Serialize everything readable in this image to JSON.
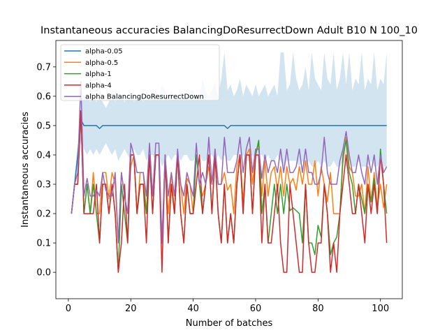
{
  "chart_data": {
    "type": "line",
    "title": "Instantaneous accuracies BalancingDoResurrectDown Adult B10 N 100_10",
    "xlabel": "Number of batches",
    "ylabel": "Instantaneous accuracies",
    "xlim": [
      -4,
      107
    ],
    "ylim": [
      -0.09,
      0.79
    ],
    "xticks": [
      0,
      20,
      40,
      60,
      80,
      100
    ],
    "yticks": [
      0.0,
      0.1,
      0.2,
      0.3,
      0.4,
      0.5,
      0.6,
      0.7
    ],
    "ytick_labels": [
      "0.0",
      "0.1",
      "0.2",
      "0.3",
      "0.4",
      "0.5",
      "0.6",
      "0.7"
    ],
    "grid": false,
    "legend_position": "top-left",
    "x": [
      1,
      2,
      3,
      4,
      5,
      6,
      7,
      8,
      9,
      10,
      11,
      12,
      13,
      14,
      15,
      16,
      17,
      18,
      19,
      20,
      21,
      22,
      23,
      24,
      25,
      26,
      27,
      28,
      29,
      30,
      31,
      32,
      33,
      34,
      35,
      36,
      37,
      38,
      39,
      40,
      41,
      42,
      43,
      44,
      45,
      46,
      47,
      48,
      49,
      50,
      51,
      52,
      53,
      54,
      55,
      56,
      57,
      58,
      59,
      60,
      61,
      62,
      63,
      64,
      65,
      66,
      67,
      68,
      69,
      70,
      71,
      72,
      73,
      74,
      75,
      76,
      77,
      78,
      79,
      80,
      81,
      82,
      83,
      84,
      85,
      86,
      87,
      88,
      89,
      90,
      91,
      92,
      93,
      94,
      95,
      96,
      97,
      98,
      99,
      100,
      101,
      102
    ],
    "series": [
      {
        "name": "alpha-0.05",
        "color": "#1f77b4",
        "values": [
          0.2,
          0.3,
          0.4,
          0.52,
          0.5,
          0.5,
          0.5,
          0.5,
          0.5,
          0.49,
          0.5,
          0.5,
          0.5,
          0.5,
          0.5,
          0.5,
          0.5,
          0.5,
          0.5,
          0.5,
          0.5,
          0.5,
          0.5,
          0.5,
          0.5,
          0.5,
          0.5,
          0.5,
          0.5,
          0.5,
          0.5,
          0.5,
          0.5,
          0.5,
          0.5,
          0.5,
          0.5,
          0.5,
          0.5,
          0.5,
          0.5,
          0.5,
          0.5,
          0.5,
          0.5,
          0.5,
          0.5,
          0.5,
          0.5,
          0.5,
          0.49,
          0.5,
          0.5,
          0.5,
          0.5,
          0.5,
          0.5,
          0.5,
          0.5,
          0.5,
          0.5,
          0.5,
          0.5,
          0.5,
          0.5,
          0.5,
          0.5,
          0.5,
          0.5,
          0.5,
          0.5,
          0.5,
          0.5,
          0.5,
          0.5,
          0.5,
          0.5,
          0.5,
          0.5,
          0.5,
          0.5,
          0.5,
          0.5,
          0.5,
          0.5,
          0.5,
          0.5,
          0.5,
          0.5,
          0.5,
          0.5,
          0.5,
          0.5,
          0.5,
          0.5,
          0.5,
          0.5,
          0.5,
          0.5,
          0.5,
          0.5,
          0.5
        ],
        "band_lower": [
          0.2,
          0.28,
          0.36,
          0.46,
          0.42,
          0.4,
          0.42,
          0.4,
          0.42,
          0.4,
          0.42,
          0.44,
          0.42,
          0.4,
          0.42,
          0.38,
          0.4,
          0.42,
          0.4,
          0.38,
          0.42,
          0.4,
          0.4,
          0.42,
          0.38,
          0.4,
          0.4,
          0.38,
          0.4,
          0.36,
          0.38,
          0.4,
          0.38,
          0.4,
          0.4,
          0.38,
          0.4,
          0.4,
          0.38,
          0.38,
          0.4,
          0.4,
          0.38,
          0.38,
          0.4,
          0.4,
          0.38,
          0.4,
          0.38,
          0.4,
          0.38,
          0.38,
          0.4,
          0.4,
          0.38,
          0.4,
          0.38,
          0.38,
          0.4,
          0.38,
          0.4,
          0.4,
          0.38,
          0.4,
          0.38,
          0.38,
          0.4,
          0.38,
          0.36,
          0.38,
          0.38,
          0.38,
          0.38,
          0.36,
          0.38,
          0.36,
          0.38,
          0.36,
          0.36,
          0.38,
          0.36,
          0.38,
          0.36,
          0.36,
          0.38,
          0.36,
          0.36,
          0.38,
          0.36,
          0.38,
          0.36,
          0.36,
          0.38,
          0.36,
          0.36,
          0.36,
          0.38,
          0.36,
          0.36,
          0.38,
          0.36,
          0.36
        ],
        "band_upper": [
          0.2,
          0.32,
          0.44,
          0.6,
          0.6,
          0.6,
          0.58,
          0.6,
          0.58,
          0.6,
          0.58,
          0.56,
          0.58,
          0.6,
          0.58,
          0.62,
          0.6,
          0.58,
          0.6,
          0.62,
          0.58,
          0.6,
          0.6,
          0.58,
          0.62,
          0.6,
          0.6,
          0.62,
          0.6,
          0.64,
          0.62,
          0.6,
          0.62,
          0.6,
          0.6,
          0.62,
          0.6,
          0.6,
          0.62,
          0.62,
          0.6,
          0.6,
          0.66,
          0.62,
          0.6,
          0.62,
          0.65,
          0.6,
          0.66,
          0.75,
          0.62,
          0.64,
          0.6,
          0.62,
          0.66,
          0.6,
          0.64,
          0.62,
          0.6,
          0.64,
          0.6,
          0.62,
          0.64,
          0.6,
          0.62,
          0.64,
          0.6,
          0.75,
          0.75,
          0.62,
          0.64,
          0.75,
          0.66,
          0.62,
          0.64,
          0.7,
          0.62,
          0.75,
          0.66,
          0.64,
          0.62,
          0.75,
          0.66,
          0.64,
          0.75,
          0.62,
          0.66,
          0.75,
          0.64,
          0.75,
          0.62,
          0.66,
          0.64,
          0.75,
          0.62,
          0.66,
          0.64,
          0.75,
          0.62,
          0.66,
          0.64,
          0.75
        ]
      },
      {
        "name": "alpha-0.5",
        "color": "#ff7f0e",
        "values": [
          0.2,
          0.3,
          0.3,
          0.55,
          0.2,
          0.3,
          0.2,
          0.34,
          0.2,
          0.2,
          0.34,
          0.34,
          0.25,
          0.34,
          0.3,
          0.1,
          0.34,
          0.26,
          0.2,
          0.36,
          0.4,
          0.2,
          0.34,
          0.34,
          0.2,
          0.4,
          0.26,
          0.4,
          0.4,
          0.1,
          0.36,
          0.2,
          0.34,
          0.2,
          0.4,
          0.3,
          0.2,
          0.32,
          0.3,
          0.2,
          0.4,
          0.3,
          0.26,
          0.3,
          0.36,
          0.3,
          0.42,
          0.3,
          0.3,
          0.34,
          0.28,
          0.3,
          0.2,
          0.36,
          0.4,
          0.24,
          0.4,
          0.42,
          0.3,
          0.4,
          0.44,
          0.26,
          0.38,
          0.26,
          0.34,
          0.36,
          0.28,
          0.36,
          0.26,
          0.36,
          0.3,
          0.32,
          0.28,
          0.36,
          0.3,
          0.38,
          0.3,
          0.3,
          0.38,
          0.26,
          0.36,
          0.3,
          0.24,
          0.34,
          0.2,
          0.2,
          0.2,
          0.38,
          0.46,
          0.36,
          0.34,
          0.26,
          0.26,
          0.3,
          0.2,
          0.36,
          0.24,
          0.34,
          0.22,
          0.3,
          0.22,
          0.3
        ]
      },
      {
        "name": "alpha-1",
        "color": "#2ca02c",
        "values": [
          0.2,
          0.3,
          0.3,
          0.55,
          0.2,
          0.3,
          0.2,
          0.3,
          0.2,
          0.1,
          0.3,
          0.3,
          0.2,
          0.3,
          0.2,
          0.0,
          0.3,
          0.2,
          0.1,
          0.4,
          0.4,
          0.2,
          0.3,
          0.3,
          0.2,
          0.4,
          0.2,
          0.4,
          0.4,
          0.1,
          0.4,
          0.1,
          0.3,
          0.2,
          0.4,
          0.2,
          0.1,
          0.3,
          0.2,
          0.2,
          0.4,
          0.3,
          0.2,
          0.3,
          0.4,
          0.2,
          0.4,
          0.2,
          0.1,
          0.3,
          0.1,
          0.2,
          0.1,
          0.3,
          0.4,
          0.2,
          0.4,
          0.4,
          0.2,
          0.4,
          0.45,
          0.2,
          0.3,
          0.1,
          0.2,
          0.3,
          0.2,
          0.3,
          0.2,
          0.3,
          0.21,
          0.22,
          0.21,
          0.2,
          0.1,
          0.3,
          0.1,
          0.1,
          0.06,
          0.16,
          0.12,
          0.3,
          0.2,
          0.06,
          0.1,
          0.12,
          0.2,
          0.4,
          0.45,
          0.34,
          0.3,
          0.2,
          0.3,
          0.25,
          0.2,
          0.3,
          0.24,
          0.32,
          0.2,
          0.42,
          0.3,
          0.2
        ]
      },
      {
        "name": "alpha-4",
        "color": "#d62728",
        "values": [
          0.2,
          0.3,
          0.3,
          0.55,
          0.2,
          0.2,
          0.2,
          0.2,
          0.3,
          0.1,
          0.3,
          0.3,
          0.2,
          0.3,
          0.2,
          0.0,
          0.1,
          0.3,
          0.1,
          0.4,
          0.4,
          0.2,
          0.3,
          0.3,
          0.1,
          0.4,
          0.2,
          0.4,
          0.4,
          0.0,
          0.4,
          0.1,
          0.3,
          0.2,
          0.4,
          0.2,
          0.1,
          0.3,
          0.2,
          0.2,
          0.3,
          0.4,
          0.2,
          0.3,
          0.4,
          0.2,
          0.4,
          0.2,
          0.1,
          0.3,
          0.1,
          0.2,
          0.1,
          0.3,
          0.4,
          0.2,
          0.4,
          0.4,
          0.2,
          0.4,
          0.4,
          0.1,
          0.3,
          0.1,
          0.1,
          0.2,
          0.3,
          0.1,
          0.0,
          0.0,
          0.3,
          0.2,
          0.1,
          0.0,
          0.0,
          0.3,
          0.1,
          0.0,
          0.0,
          0.1,
          0.1,
          0.3,
          0.2,
          0.0,
          0.1,
          0.0,
          0.2,
          0.3,
          0.4,
          0.3,
          0.2,
          0.2,
          0.3,
          0.2,
          0.1,
          0.3,
          0.2,
          0.3,
          0.2,
          0.4,
          0.3,
          0.1
        ]
      },
      {
        "name": "alpha BalancingDoResurrectDown",
        "color": "#9467bd",
        "values": [
          0.2,
          0.3,
          0.34,
          0.65,
          0.26,
          0.32,
          0.26,
          0.26,
          0.28,
          0.26,
          0.34,
          0.28,
          0.26,
          0.26,
          0.34,
          0.1,
          0.34,
          0.26,
          0.2,
          0.44,
          0.4,
          0.34,
          0.34,
          0.34,
          0.26,
          0.44,
          0.26,
          0.44,
          0.44,
          0.1,
          0.4,
          0.26,
          0.34,
          0.26,
          0.42,
          0.3,
          0.26,
          0.34,
          0.3,
          0.26,
          0.44,
          0.3,
          0.34,
          0.3,
          0.46,
          0.3,
          0.42,
          0.3,
          0.3,
          0.46,
          0.34,
          0.34,
          0.34,
          0.38,
          0.46,
          0.34,
          0.42,
          0.46,
          0.34,
          0.42,
          0.42,
          0.32,
          0.4,
          0.34,
          0.38,
          0.38,
          0.34,
          0.42,
          0.34,
          0.42,
          0.34,
          0.34,
          0.36,
          0.42,
          0.34,
          0.42,
          0.34,
          0.34,
          0.3,
          0.3,
          0.34,
          0.46,
          0.34,
          0.3,
          0.3,
          0.3,
          0.38,
          0.42,
          0.48,
          0.4,
          0.34,
          0.34,
          0.4,
          0.34,
          0.3,
          0.4,
          0.34,
          0.4,
          0.3,
          0.4,
          0.34,
          0.36
        ]
      }
    ]
  }
}
